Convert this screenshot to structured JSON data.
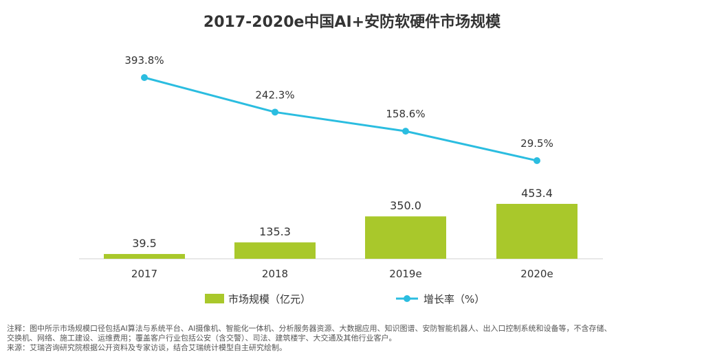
{
  "chart_data": {
    "type": "bar",
    "title": "2017-2020e中国AI+安防软硬件市场规模",
    "categories": [
      "2017",
      "2018",
      "2019e",
      "2020e"
    ],
    "series": [
      {
        "name": "市场规模（亿元）",
        "type": "bar",
        "values": [
          39.5,
          135.3,
          350.0,
          453.4
        ],
        "labels": [
          "39.5",
          "135.3",
          "350.0",
          "453.4"
        ],
        "color": "#a9c82b"
      },
      {
        "name": "增长率（%）",
        "type": "line",
        "values": [
          393.8,
          242.3,
          158.6,
          29.5
        ],
        "labels": [
          "393.8%",
          "242.3%",
          "158.6%",
          "29.5%"
        ],
        "color": "#2bbde0"
      }
    ],
    "legend_position": "bottom"
  },
  "notes": [
    "注释：图中所示市场规模口径包括AI算法与系统平台、AI摄像机、智能化一体机、分析服务器资源、大数据应用、知识图谱、安防智能机器人、出入口控制系统和设备等，不含存储、",
    "交换机、网络、施工建设、运维费用；覆盖客户行业包括公安（含交警）、司法、建筑楼宇、大交通及其他行业客户。",
    "来源：艾瑞咨询研究院根据公开资料及专家访谈，结合艾瑞统计模型自主研究绘制。"
  ]
}
